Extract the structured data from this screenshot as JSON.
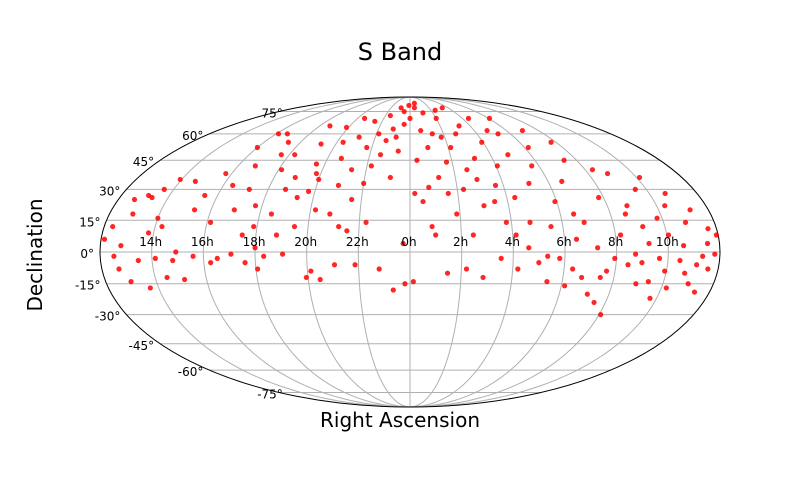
{
  "chart_data": {
    "type": "scatter",
    "projection": "mollweide",
    "title": "S Band",
    "xlabel": "Right Ascension",
    "ylabel": "Declination",
    "grid": true,
    "point_color": "#ff0000",
    "x_tick_labels": [
      "14h",
      "16h",
      "18h",
      "20h",
      "22h",
      "0h",
      "2h",
      "4h",
      "6h",
      "8h",
      "10h"
    ],
    "x_tick_values_deg": [
      -150,
      -120,
      -90,
      -60,
      -30,
      0,
      30,
      60,
      90,
      120,
      150
    ],
    "y_tick_labels": [
      "-75°",
      "-60°",
      "-45°",
      "-30°",
      "-15°",
      "0°",
      "15°",
      "30°",
      "45°",
      "60°",
      "75°"
    ],
    "y_tick_values_deg": [
      -75,
      -60,
      -45,
      -30,
      -15,
      0,
      15,
      30,
      45,
      60,
      75
    ],
    "points": [
      {
        "lon": -178,
        "lat": 6
      },
      {
        "lon": -175,
        "lat": 12
      },
      {
        "lon": -172,
        "lat": -2
      },
      {
        "lon": -170,
        "lat": -8
      },
      {
        "lon": -168,
        "lat": 3
      },
      {
        "lon": -166,
        "lat": 18
      },
      {
        "lon": -165,
        "lat": -14
      },
      {
        "lon": -163,
        "lat": 27
      },
      {
        "lon": -160,
        "lat": 26
      },
      {
        "lon": -158,
        "lat": -4
      },
      {
        "lon": -156,
        "lat": 30
      },
      {
        "lon": -155,
        "lat": -17
      },
      {
        "lon": -153,
        "lat": 9
      },
      {
        "lon": -151,
        "lat": 35
      },
      {
        "lon": -148,
        "lat": -3
      },
      {
        "lon": -146,
        "lat": 12
      },
      {
        "lon": -140,
        "lat": 34
      },
      {
        "lon": -138,
        "lat": -4
      },
      {
        "lon": -136,
        "lat": 0
      },
      {
        "lon": -133,
        "lat": -13
      },
      {
        "lon": -130,
        "lat": 20
      },
      {
        "lon": -128,
        "lat": 27
      },
      {
        "lon": -126,
        "lat": -2
      },
      {
        "lon": -124,
        "lat": 38
      },
      {
        "lon": -120,
        "lat": 52
      },
      {
        "lon": -118,
        "lat": 14
      },
      {
        "lon": -116,
        "lat": -5
      },
      {
        "lon": -114,
        "lat": 32
      },
      {
        "lon": -110,
        "lat": 60
      },
      {
        "lon": -108,
        "lat": 42
      },
      {
        "lon": -106,
        "lat": 20
      },
      {
        "lon": -104,
        "lat": -1
      },
      {
        "lon": -102,
        "lat": 30
      },
      {
        "lon": -100,
        "lat": 55
      },
      {
        "lon": -98,
        "lat": 8
      },
      {
        "lon": -96,
        "lat": -5
      },
      {
        "lon": -94,
        "lat": 22
      },
      {
        "lon": -92,
        "lat": 12
      },
      {
        "lon": -90,
        "lat": 2
      },
      {
        "lon": -88,
        "lat": 40
      },
      {
        "lon": -86,
        "lat": 48
      },
      {
        "lon": -85,
        "lat": -2
      },
      {
        "lon": -83,
        "lat": 18
      },
      {
        "lon": -80,
        "lat": 65
      },
      {
        "lon": -78,
        "lat": 8
      },
      {
        "lon": -76,
        "lat": 36
      },
      {
        "lon": -74,
        "lat": -1
      },
      {
        "lon": -72,
        "lat": 54
      },
      {
        "lon": -70,
        "lat": 26
      },
      {
        "lon": -68,
        "lat": 12
      },
      {
        "lon": -66,
        "lat": 43
      },
      {
        "lon": -64,
        "lat": 29
      },
      {
        "lon": -62,
        "lat": 64
      },
      {
        "lon": -60,
        "lat": 35
      },
      {
        "lon": -58,
        "lat": -9
      },
      {
        "lon": -57,
        "lat": 20
      },
      {
        "lon": -55,
        "lat": 55
      },
      {
        "lon": -53,
        "lat": -13
      },
      {
        "lon": -52,
        "lat": 70
      },
      {
        "lon": -50,
        "lat": 46
      },
      {
        "lon": -48,
        "lat": 18
      },
      {
        "lon": -46,
        "lat": 32
      },
      {
        "lon": -44,
        "lat": 58
      },
      {
        "lon": -42,
        "lat": 12
      },
      {
        "lon": -40,
        "lat": 40
      },
      {
        "lon": -38,
        "lat": 68
      },
      {
        "lon": -36,
        "lat": 25
      },
      {
        "lon": -34,
        "lat": 52
      },
      {
        "lon": -32,
        "lat": -6
      },
      {
        "lon": -30,
        "lat": 33
      },
      {
        "lon": -28,
        "lat": 60
      },
      {
        "lon": -26,
        "lat": 14
      },
      {
        "lon": -24,
        "lat": 72
      },
      {
        "lon": -22,
        "lat": 48
      },
      {
        "lon": -20,
        "lat": 56
      },
      {
        "lon": -18,
        "lat": -8
      },
      {
        "lon": -16,
        "lat": 63
      },
      {
        "lon": -14,
        "lat": 78
      },
      {
        "lon": -12,
        "lat": 58
      },
      {
        "lon": -10,
        "lat": -18
      },
      {
        "lon": -8,
        "lat": 75
      },
      {
        "lon": -6,
        "lat": 66
      },
      {
        "lon": -4,
        "lat": 4
      },
      {
        "lon": -3,
        "lat": -15
      },
      {
        "lon": -2,
        "lat": 80
      },
      {
        "lon": 0,
        "lat": 70
      },
      {
        "lon": 2,
        "lat": -14
      },
      {
        "lon": 3,
        "lat": 28
      },
      {
        "lon": 5,
        "lat": 45
      },
      {
        "lon": 7,
        "lat": 78
      },
      {
        "lon": 8,
        "lat": 24
      },
      {
        "lon": 10,
        "lat": 62
      },
      {
        "lon": 12,
        "lat": 31
      },
      {
        "lon": 14,
        "lat": 52
      },
      {
        "lon": 15,
        "lat": 8
      },
      {
        "lon": 17,
        "lat": 74
      },
      {
        "lon": 19,
        "lat": 36
      },
      {
        "lon": 20,
        "lat": 60
      },
      {
        "lon": 22,
        "lat": -10
      },
      {
        "lon": 24,
        "lat": 28
      },
      {
        "lon": 26,
        "lat": 44
      },
      {
        "lon": 28,
        "lat": 18
      },
      {
        "lon": 30,
        "lat": 70
      },
      {
        "lon": 32,
        "lat": 52
      },
      {
        "lon": 34,
        "lat": 30
      },
      {
        "lon": 36,
        "lat": 76
      },
      {
        "lon": 37,
        "lat": 8
      },
      {
        "lon": 39,
        "lat": 40
      },
      {
        "lon": 41,
        "lat": 60
      },
      {
        "lon": 43,
        "lat": -12
      },
      {
        "lon": 45,
        "lat": 22
      },
      {
        "lon": 47,
        "lat": 46
      },
      {
        "lon": 49,
        "lat": 65
      },
      {
        "lon": 51,
        "lat": 78
      },
      {
        "lon": 53,
        "lat": -3
      },
      {
        "lon": 55,
        "lat": 32
      },
      {
        "lon": 57,
        "lat": 14
      },
      {
        "lon": 59,
        "lat": 55
      },
      {
        "lon": 61,
        "lat": 42
      },
      {
        "lon": 63,
        "lat": -8
      },
      {
        "lon": 65,
        "lat": 26
      },
      {
        "lon": 67,
        "lat": 70
      },
      {
        "lon": 69,
        "lat": 2
      },
      {
        "lon": 71,
        "lat": 14
      },
      {
        "lon": 73,
        "lat": 48
      },
      {
        "lon": 75,
        "lat": -5
      },
      {
        "lon": 77,
        "lat": 33
      },
      {
        "lon": 79,
        "lat": 60
      },
      {
        "lon": 81,
        "lat": -14
      },
      {
        "lon": 83,
        "lat": 12
      },
      {
        "lon": 85,
        "lat": 42
      },
      {
        "lon": 87,
        "lat": -3
      },
      {
        "lon": 89,
        "lat": 24
      },
      {
        "lon": 91,
        "lat": 70
      },
      {
        "lon": 93,
        "lat": 52
      },
      {
        "lon": 95,
        "lat": -8
      },
      {
        "lon": 97,
        "lat": 6
      },
      {
        "lon": 99,
        "lat": 34
      },
      {
        "lon": 101,
        "lat": -12
      },
      {
        "lon": 103,
        "lat": 14
      },
      {
        "lon": 105,
        "lat": 62
      },
      {
        "lon": 107,
        "lat": -20
      },
      {
        "lon": 109,
        "lat": 2
      },
      {
        "lon": 111,
        "lat": 45
      },
      {
        "lon": 113,
        "lat": -24
      },
      {
        "lon": 115,
        "lat": -9
      },
      {
        "lon": 117,
        "lat": 26
      },
      {
        "lon": 119,
        "lat": -3
      },
      {
        "lon": 121,
        "lat": -30
      },
      {
        "lon": 123,
        "lat": 8
      },
      {
        "lon": 125,
        "lat": 40
      },
      {
        "lon": 127,
        "lat": -6
      },
      {
        "lon": 129,
        "lat": 18
      },
      {
        "lon": 131,
        "lat": -1
      },
      {
        "lon": 133,
        "lat": 38
      },
      {
        "lon": 135,
        "lat": -5
      },
      {
        "lon": 137,
        "lat": 12
      },
      {
        "lon": 139,
        "lat": 4
      },
      {
        "lon": 141,
        "lat": -14
      },
      {
        "lon": 143,
        "lat": 30
      },
      {
        "lon": 145,
        "lat": -3
      },
      {
        "lon": 147,
        "lat": 16
      },
      {
        "lon": 149,
        "lat": -9
      },
      {
        "lon": 151,
        "lat": 8
      },
      {
        "lon": 153,
        "lat": -17
      },
      {
        "lon": 155,
        "lat": 22
      },
      {
        "lon": 157,
        "lat": -4
      },
      {
        "lon": 159,
        "lat": 3
      },
      {
        "lon": 161,
        "lat": -10
      },
      {
        "lon": 163,
        "lat": 14
      },
      {
        "lon": 165,
        "lat": -15
      },
      {
        "lon": 167,
        "lat": -6
      },
      {
        "lon": 169,
        "lat": 20
      },
      {
        "lon": 171,
        "lat": -19
      },
      {
        "lon": 173,
        "lat": 4
      },
      {
        "lon": 175,
        "lat": 11
      },
      {
        "lon": 177,
        "lat": -1
      },
      {
        "lon": 179,
        "lat": 8
      },
      {
        "lon": -170,
        "lat": 25
      },
      {
        "lon": -143,
        "lat": -12
      },
      {
        "lon": -112,
        "lat": -3
      },
      {
        "lon": -96,
        "lat": 48
      },
      {
        "lon": -79,
        "lat": 30
      },
      {
        "lon": -61,
        "lat": -12
      },
      {
        "lon": -44,
        "lat": -6
      },
      {
        "lon": -27,
        "lat": 42
      },
      {
        "lon": -9,
        "lat": 50
      },
      {
        "lon": 9,
        "lat": 82
      },
      {
        "lon": 27,
        "lat": 58
      },
      {
        "lon": 44,
        "lat": 35
      },
      {
        "lon": 62,
        "lat": 8
      },
      {
        "lon": 80,
        "lat": -2
      },
      {
        "lon": 98,
        "lat": 18
      },
      {
        "lon": 116,
        "lat": 55
      },
      {
        "lon": 134,
        "lat": -15
      },
      {
        "lon": 152,
        "lat": 36
      },
      {
        "lon": 170,
        "lat": -2
      },
      {
        "lon": -150,
        "lat": 16
      },
      {
        "lon": -118,
        "lat": 60
      },
      {
        "lon": -89,
        "lat": -8
      },
      {
        "lon": -63,
        "lat": 38
      },
      {
        "lon": -37,
        "lat": 10
      },
      {
        "lon": -13,
        "lat": 36
      },
      {
        "lon": 13,
        "lat": 12
      },
      {
        "lon": 33,
        "lat": -8
      },
      {
        "lon": 52,
        "lat": 24
      },
      {
        "lon": 72,
        "lat": 62
      },
      {
        "lon": 92,
        "lat": -16
      },
      {
        "lon": 112,
        "lat": -12
      },
      {
        "lon": 132,
        "lat": 22
      },
      {
        "lon": 146,
        "lat": -22
      },
      {
        "lon": 160,
        "lat": 28
      },
      {
        "lon": 174,
        "lat": -8
      }
    ]
  }
}
